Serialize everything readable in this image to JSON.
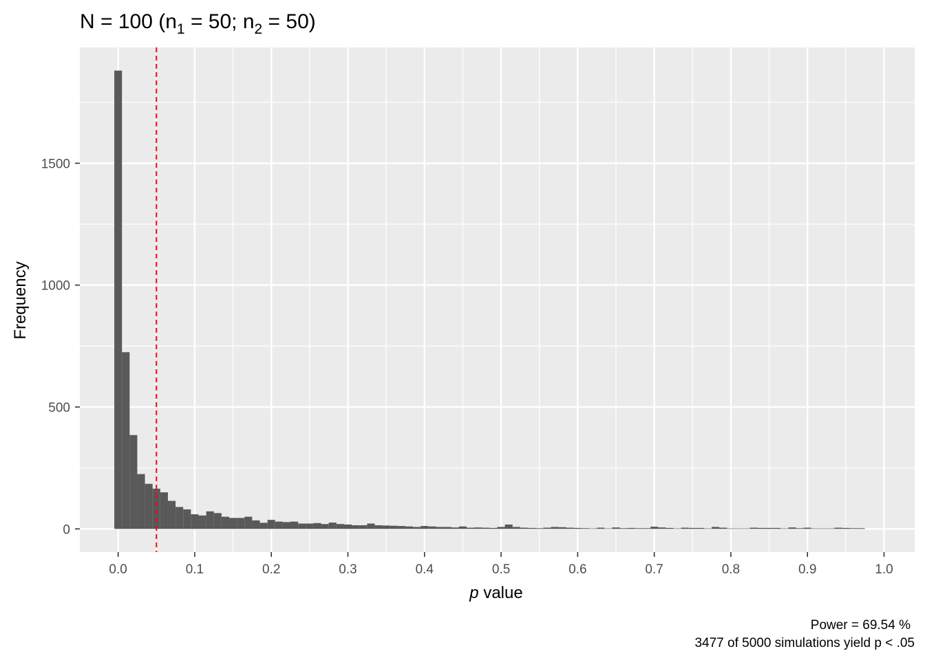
{
  "chart_data": {
    "type": "bar",
    "title": {
      "main": "N = 100 (n",
      "sub1": "1",
      "mid": " = 50; n",
      "sub2": "2",
      "end": " = 50)"
    },
    "xlabel": {
      "italic": "p",
      "rest": " value"
    },
    "ylabel": "Frequency",
    "caption": {
      "line1": "Power = 69.54 %",
      "line2": "3477 of 5000 simulations yield p < .05"
    },
    "xlim": [
      -0.05,
      1.04
    ],
    "ylim": [
      -95,
      1975
    ],
    "x_ticks": [
      0.0,
      0.1,
      0.2,
      0.3,
      0.4,
      0.5,
      0.6,
      0.7,
      0.8,
      0.9,
      1.0
    ],
    "x_tick_labels": [
      "0.0",
      "0.1",
      "0.2",
      "0.3",
      "0.4",
      "0.5",
      "0.6",
      "0.7",
      "0.8",
      "0.9",
      "1.0"
    ],
    "y_ticks": [
      0,
      500,
      1000,
      1500
    ],
    "y_tick_labels": [
      "0",
      "500",
      "1000",
      "1500"
    ],
    "bin_width": 0.01,
    "bin_start": -0.005,
    "counts": [
      1880,
      725,
      385,
      225,
      185,
      165,
      150,
      115,
      90,
      80,
      60,
      55,
      72,
      65,
      50,
      45,
      45,
      50,
      35,
      25,
      37,
      30,
      28,
      30,
      22,
      22,
      24,
      20,
      26,
      20,
      18,
      15,
      15,
      22,
      15,
      14,
      13,
      12,
      10,
      8,
      12,
      10,
      8,
      8,
      6,
      10,
      5,
      6,
      5,
      4,
      8,
      18,
      8,
      5,
      4,
      3,
      5,
      8,
      7,
      5,
      4,
      3,
      2,
      5,
      2,
      6,
      3,
      4,
      3,
      3,
      9,
      6,
      4,
      2,
      5,
      4,
      4,
      2,
      8,
      5,
      2,
      2,
      2,
      5,
      4,
      4,
      4,
      2,
      6,
      3,
      5,
      2,
      2,
      2,
      5,
      4,
      3,
      3,
      0,
      0
    ],
    "reference_line": {
      "x": 0.05,
      "color": "#ff0000",
      "style": "dashed"
    },
    "colors": {
      "panel": "#ebebeb",
      "grid": "#ffffff",
      "bar": "#595959"
    },
    "grid": true
  }
}
